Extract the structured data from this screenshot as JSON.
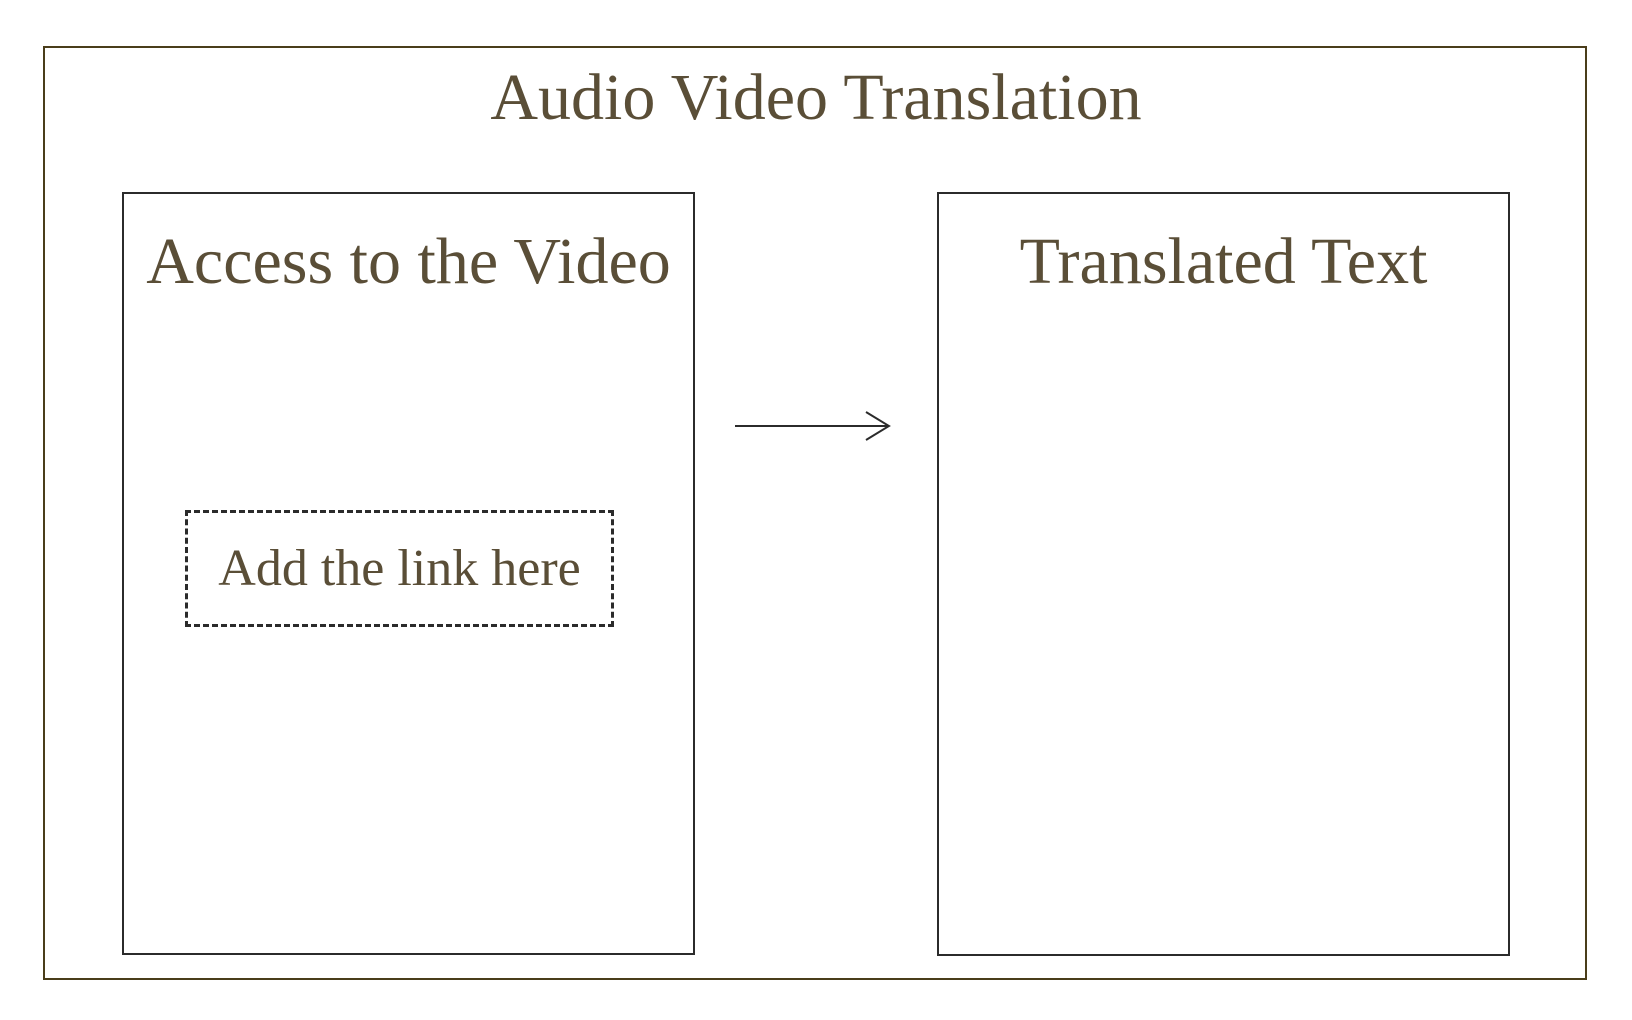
{
  "app": {
    "title": "Audio Video Translation"
  },
  "input_panel": {
    "title": "Access to the Video",
    "link_field": {
      "placeholder": "Add the link here"
    }
  },
  "output_panel": {
    "title": "Translated Text",
    "content": ""
  },
  "icons": {
    "flow_arrow": "arrow-right-icon"
  },
  "colors": {
    "frame": "#4a3d1a",
    "text": "#5a4e37",
    "border": "#2b2b2b"
  }
}
